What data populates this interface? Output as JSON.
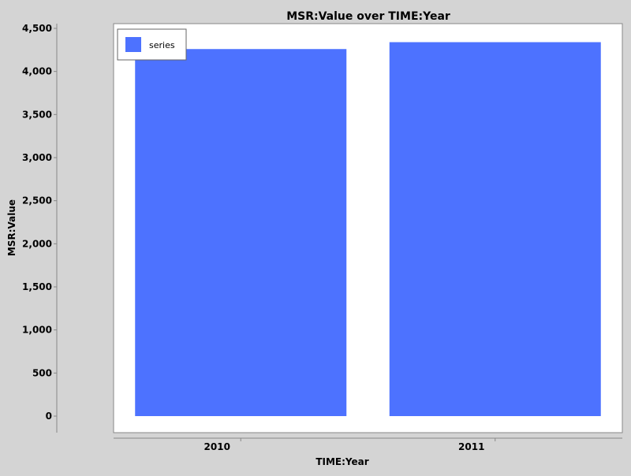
{
  "chart_data": {
    "type": "bar",
    "title": "MSR:Value over TIME:Year",
    "xlabel": "TIME:Year",
    "ylabel": "MSR:Value",
    "categories": [
      "2010",
      "2011"
    ],
    "series": [
      {
        "name": "series",
        "values": [
          4260,
          4340
        ],
        "color": "#4d72ff"
      }
    ],
    "ylim": [
      0,
      4500
    ],
    "yticks": [
      0,
      500,
      1000,
      1500,
      2000,
      2500,
      3000,
      3500,
      4000,
      4500
    ],
    "ytick_labels": [
      "0",
      "500",
      "1,000",
      "1,500",
      "2,000",
      "2,500",
      "3,000",
      "3,500",
      "4,000",
      "4,500"
    ],
    "grid": false,
    "legend_position": "top-left",
    "colors": {
      "background": "#d4d4d4",
      "plot_background": "#ffffff",
      "bar": "#4d72ff"
    }
  }
}
